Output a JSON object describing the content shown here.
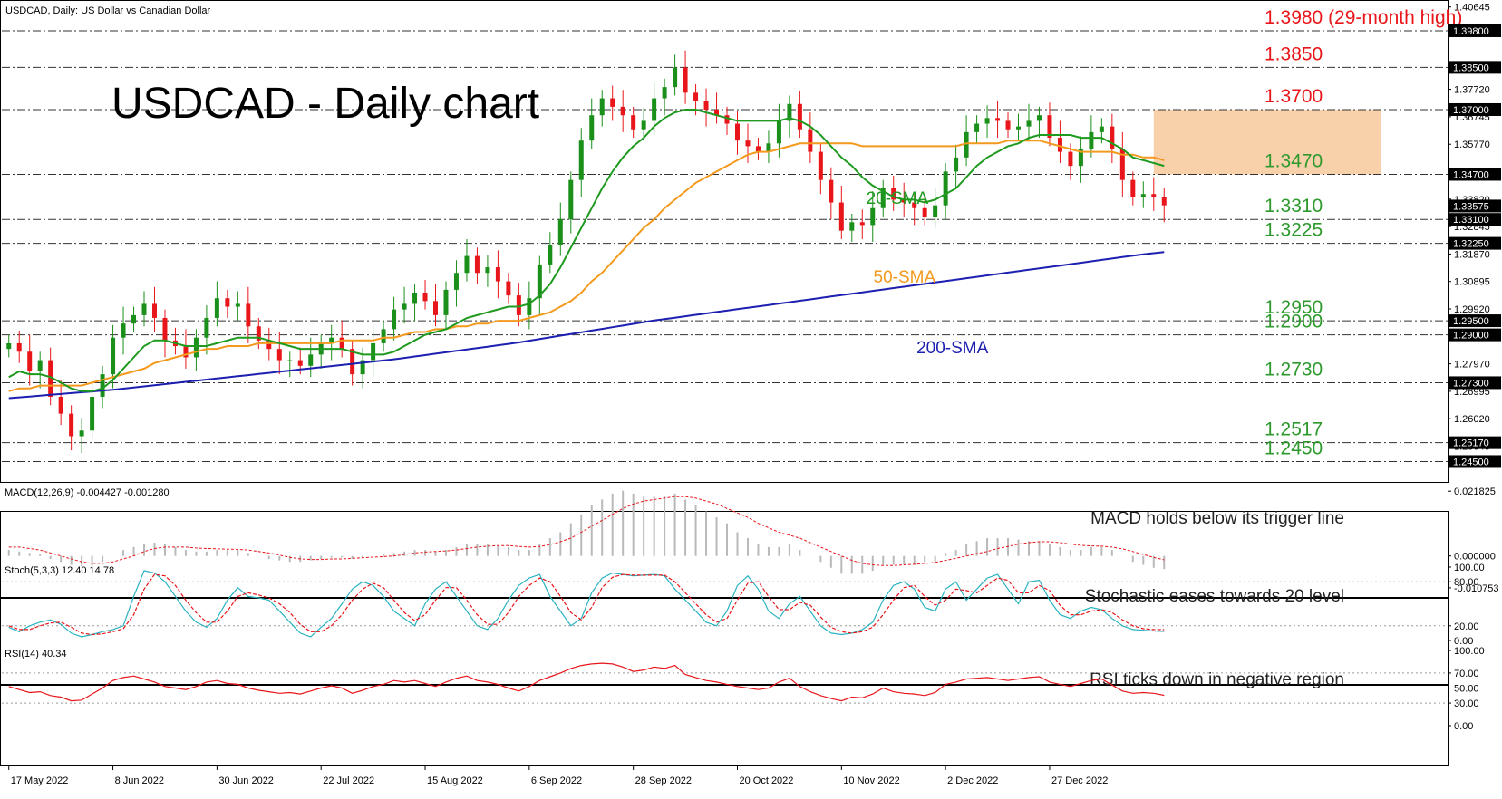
{
  "header": {
    "symbol_line": "USDCAD, Daily:  US Dollar vs Canadian Dollar",
    "big_title": "USDCAD - Daily chart"
  },
  "colors": {
    "bull": "#1a8f1a",
    "bear": "#e8161b",
    "sma20": "#1f9a1f",
    "sma50": "#f39a1e",
    "sma200": "#1c1fb0",
    "range_box": "#f6c08e",
    "level_red": "#e8161b",
    "level_green": "#2e9a2e",
    "macd_hist": "#b9b9b9",
    "macd_signal": "#e8161b",
    "stoch_main": "#2ab3c0",
    "stoch_signal": "#e8161b",
    "rsi": "#e8161b"
  },
  "chart_data": [
    {
      "panel": "price",
      "type": "candlestick",
      "ylim": [
        1.24,
        1.407
      ],
      "y_ticks": [
        "1.40645",
        "1.37720",
        "1.36745",
        "1.35770",
        "1.34795",
        "1.33820",
        "1.32845",
        "1.31870",
        "1.30895",
        "1.29920",
        "1.28945",
        "1.27970",
        "1.26995",
        "1.26020",
        "1.25045"
      ],
      "current_price": "1.33575",
      "x_labels": [
        "17 May 2022",
        "8 Jun 2022",
        "30 Jun 2022",
        "22 Jul 2022",
        "15 Aug 2022",
        "6 Sep 2022",
        "28 Sep 2022",
        "20 Oct 2022",
        "10 Nov 2022",
        "2 Dec 2022",
        "27 Dec 2022"
      ],
      "series_path": [
        1.287,
        1.284,
        1.277,
        1.281,
        1.268,
        1.262,
        1.254,
        1.256,
        1.268,
        1.276,
        1.289,
        1.294,
        1.297,
        1.301,
        1.296,
        1.288,
        1.286,
        1.282,
        1.289,
        1.296,
        1.303,
        1.3,
        1.301,
        1.293,
        1.288,
        1.285,
        1.281,
        1.281,
        1.279,
        1.283,
        1.287,
        1.289,
        1.285,
        1.276,
        1.281,
        1.287,
        1.292,
        1.299,
        1.301,
        1.305,
        1.302,
        1.297,
        1.306,
        1.312,
        1.318,
        1.312,
        1.314,
        1.309,
        1.304,
        1.297,
        1.303,
        1.315,
        1.322,
        1.331,
        1.345,
        1.359,
        1.368,
        1.374,
        1.371,
        1.368,
        1.363,
        1.366,
        1.374,
        1.378,
        1.385,
        1.376,
        1.373,
        1.37,
        1.368,
        1.365,
        1.359,
        1.357,
        1.355,
        1.358,
        1.366,
        1.372,
        1.363,
        1.355,
        1.345,
        1.337,
        1.327,
        1.33,
        1.329,
        1.335,
        1.342,
        1.338,
        1.337,
        1.335,
        1.332,
        1.336,
        1.348,
        1.353,
        1.362,
        1.365,
        1.367,
        1.366,
        1.363,
        1.364,
        1.366,
        1.368,
        1.36,
        1.355,
        1.35,
        1.356,
        1.362,
        1.364,
        1.356,
        1.345,
        1.339,
        1.34,
        1.339,
        1.336
      ],
      "sma20": [
        1.275,
        1.277,
        1.276,
        1.276,
        1.275,
        1.273,
        1.271,
        1.27,
        1.27,
        1.271,
        1.274,
        1.278,
        1.282,
        1.286,
        1.288,
        1.288,
        1.287,
        1.286,
        1.286,
        1.286,
        1.287,
        1.288,
        1.289,
        1.289,
        1.289,
        1.288,
        1.287,
        1.286,
        1.285,
        1.285,
        1.285,
        1.285,
        1.285,
        1.284,
        1.283,
        1.283,
        1.283,
        1.284,
        1.286,
        1.288,
        1.29,
        1.291,
        1.292,
        1.294,
        1.296,
        1.297,
        1.298,
        1.299,
        1.3,
        1.3,
        1.301,
        1.304,
        1.308,
        1.314,
        1.321,
        1.328,
        1.335,
        1.342,
        1.348,
        1.353,
        1.357,
        1.36,
        1.364,
        1.367,
        1.369,
        1.37,
        1.37,
        1.369,
        1.368,
        1.367,
        1.366,
        1.366,
        1.366,
        1.366,
        1.366,
        1.367,
        1.366,
        1.364,
        1.361,
        1.357,
        1.353,
        1.35,
        1.346,
        1.343,
        1.341,
        1.339,
        1.338,
        1.338,
        1.337,
        1.338,
        1.34,
        1.342,
        1.346,
        1.35,
        1.353,
        1.355,
        1.357,
        1.358,
        1.36,
        1.361,
        1.361,
        1.361,
        1.361,
        1.36,
        1.36,
        1.36,
        1.358,
        1.356,
        1.353,
        1.352,
        1.351,
        1.35
      ],
      "sma50": [
        1.27,
        1.271,
        1.271,
        1.272,
        1.272,
        1.272,
        1.272,
        1.272,
        1.273,
        1.274,
        1.275,
        1.276,
        1.277,
        1.278,
        1.28,
        1.281,
        1.282,
        1.283,
        1.284,
        1.285,
        1.285,
        1.286,
        1.286,
        1.286,
        1.287,
        1.287,
        1.287,
        1.287,
        1.287,
        1.287,
        1.287,
        1.287,
        1.288,
        1.288,
        1.288,
        1.288,
        1.289,
        1.289,
        1.29,
        1.291,
        1.291,
        1.292,
        1.292,
        1.293,
        1.293,
        1.294,
        1.294,
        1.295,
        1.295,
        1.295,
        1.296,
        1.297,
        1.298,
        1.3,
        1.302,
        1.305,
        1.309,
        1.312,
        1.316,
        1.32,
        1.324,
        1.328,
        1.331,
        1.335,
        1.338,
        1.341,
        1.344,
        1.346,
        1.348,
        1.35,
        1.352,
        1.354,
        1.355,
        1.355,
        1.356,
        1.357,
        1.358,
        1.358,
        1.358,
        1.358,
        1.358,
        1.358,
        1.357,
        1.357,
        1.357,
        1.357,
        1.357,
        1.357,
        1.357,
        1.357,
        1.357,
        1.357,
        1.358,
        1.358,
        1.358,
        1.358,
        1.359,
        1.359,
        1.359,
        1.359,
        1.358,
        1.357,
        1.356,
        1.355,
        1.355,
        1.355,
        1.355,
        1.354,
        1.354,
        1.353,
        1.353,
        1.352
      ],
      "sma200": [
        1.2675,
        1.2678,
        1.2681,
        1.2684,
        1.2687,
        1.269,
        1.2693,
        1.2696,
        1.2699,
        1.2702,
        1.2705,
        1.2709,
        1.2713,
        1.2717,
        1.2721,
        1.2725,
        1.2729,
        1.2733,
        1.2737,
        1.2741,
        1.2745,
        1.2749,
        1.2753,
        1.2757,
        1.2761,
        1.2765,
        1.2769,
        1.2773,
        1.2777,
        1.2781,
        1.2785,
        1.2789,
        1.2793,
        1.2797,
        1.2801,
        1.2805,
        1.2809,
        1.2813,
        1.2818,
        1.2823,
        1.2828,
        1.2833,
        1.2838,
        1.2843,
        1.2848,
        1.2853,
        1.2858,
        1.2863,
        1.2868,
        1.2873,
        1.2879,
        1.2885,
        1.2891,
        1.2897,
        1.2903,
        1.2909,
        1.2915,
        1.2921,
        1.2927,
        1.2933,
        1.2939,
        1.2945,
        1.2951,
        1.2956,
        1.2961,
        1.2966,
        1.2971,
        1.2976,
        1.2981,
        1.2986,
        1.2991,
        1.2996,
        1.3001,
        1.3006,
        1.3011,
        1.3016,
        1.3021,
        1.3026,
        1.3031,
        1.3036,
        1.3041,
        1.3046,
        1.3051,
        1.3056,
        1.3061,
        1.3066,
        1.3071,
        1.3076,
        1.3081,
        1.3086,
        1.3091,
        1.3096,
        1.3101,
        1.3106,
        1.3111,
        1.3116,
        1.3121,
        1.3126,
        1.3131,
        1.3136,
        1.3141,
        1.3146,
        1.3151,
        1.3156,
        1.3161,
        1.3166,
        1.3171,
        1.3176,
        1.3181,
        1.3186,
        1.319,
        1.3194
      ],
      "range_box": {
        "x_from": 0.8,
        "x_to": 0.958,
        "y_from": 1.347,
        "y_to": 1.37
      },
      "levels": [
        {
          "value": 1.398,
          "label": "1.3980 (29-month high)",
          "axis_label": "1.39800",
          "color": "red"
        },
        {
          "value": 1.385,
          "label": "1.3850",
          "axis_label": "1.38500",
          "color": "red"
        },
        {
          "value": 1.37,
          "label": "1.3700",
          "axis_label": "1.37000",
          "color": "red"
        },
        {
          "value": 1.347,
          "label": "1.3470",
          "axis_label": "1.34700",
          "color": "green"
        },
        {
          "value": 1.331,
          "label": "1.3310",
          "axis_label": "1.33100",
          "color": "green"
        },
        {
          "value": 1.3225,
          "label": "1.3225",
          "axis_label": "1.32250",
          "color": "green"
        },
        {
          "value": 1.295,
          "label": "1.2950",
          "axis_label": "1.29500",
          "color": "green"
        },
        {
          "value": 1.29,
          "label": "1.2900",
          "axis_label": "1.29000",
          "color": "green"
        },
        {
          "value": 1.273,
          "label": "1.2730",
          "axis_label": "1.27300",
          "color": "green"
        },
        {
          "value": 1.2517,
          "label": "1.2517",
          "axis_label": "1.25170",
          "color": "green"
        },
        {
          "value": 1.245,
          "label": "1.2450",
          "axis_label": "1.24500",
          "color": "green"
        }
      ],
      "annotations": [
        {
          "text": "20-SMA",
          "color": "sma20",
          "at_x": 0.6,
          "at_y": 1.3365
        },
        {
          "text": "50-SMA",
          "color": "sma50",
          "at_x": 0.605,
          "at_y": 1.3085
        },
        {
          "text": "200-SMA",
          "color": "sma200",
          "at_x": 0.635,
          "at_y": 1.2835
        }
      ]
    },
    {
      "panel": "macd",
      "type": "bar+line",
      "title": "MACD(12,26,9) -0.004427 -0.001280",
      "ylim": [
        -0.012,
        0.0225
      ],
      "y_ticks": [
        "0.021825",
        "0.000000",
        "-0.010753"
      ],
      "note": "MACD holds below its trigger line",
      "histogram": [
        0.002,
        0.0015,
        0.001,
        0.0005,
        -0.001,
        -0.002,
        -0.003,
        -0.0035,
        -0.003,
        -0.002,
        0.0,
        0.002,
        0.003,
        0.004,
        0.0045,
        0.004,
        0.003,
        0.002,
        0.0015,
        0.0015,
        0.002,
        0.002,
        0.002,
        0.001,
        0.0,
        -0.001,
        -0.0015,
        -0.002,
        -0.002,
        -0.0015,
        -0.001,
        -0.0005,
        -0.0005,
        -0.001,
        -0.0005,
        0.0,
        0.0005,
        0.001,
        0.0015,
        0.002,
        0.002,
        0.0015,
        0.002,
        0.003,
        0.004,
        0.004,
        0.004,
        0.0035,
        0.003,
        0.002,
        0.002,
        0.004,
        0.006,
        0.008,
        0.011,
        0.014,
        0.017,
        0.019,
        0.021,
        0.022,
        0.021,
        0.02,
        0.02,
        0.02,
        0.021,
        0.019,
        0.017,
        0.015,
        0.013,
        0.011,
        0.008,
        0.006,
        0.004,
        0.003,
        0.003,
        0.004,
        0.002,
        0.0,
        -0.002,
        -0.004,
        -0.006,
        -0.006,
        -0.006,
        -0.005,
        -0.003,
        -0.003,
        -0.003,
        -0.003,
        -0.002,
        -0.002,
        0.001,
        0.002,
        0.004,
        0.005,
        0.006,
        0.006,
        0.006,
        0.0055,
        0.005,
        0.005,
        0.004,
        0.003,
        0.002,
        0.002,
        0.003,
        0.003,
        0.002,
        0.0,
        -0.002,
        -0.003,
        -0.004,
        -0.0044
      ],
      "signal": [
        0.003,
        0.003,
        0.0025,
        0.002,
        0.001,
        0.0,
        -0.001,
        -0.002,
        -0.0025,
        -0.0025,
        -0.002,
        -0.001,
        0.0,
        0.0015,
        0.0025,
        0.003,
        0.003,
        0.003,
        0.0027,
        0.0025,
        0.0024,
        0.0023,
        0.0022,
        0.002,
        0.0015,
        0.001,
        0.0003,
        -0.0005,
        -0.001,
        -0.0012,
        -0.0012,
        -0.001,
        -0.001,
        -0.0008,
        -0.0006,
        -0.0004,
        -0.0002,
        0.0,
        0.0005,
        0.001,
        0.0013,
        0.0015,
        0.0017,
        0.002,
        0.0025,
        0.003,
        0.0033,
        0.0035,
        0.0035,
        0.0032,
        0.003,
        0.0032,
        0.0038,
        0.0048,
        0.006,
        0.008,
        0.01,
        0.012,
        0.014,
        0.016,
        0.0175,
        0.0185,
        0.019,
        0.0195,
        0.02,
        0.02,
        0.0195,
        0.0185,
        0.0175,
        0.016,
        0.0145,
        0.013,
        0.011,
        0.0095,
        0.008,
        0.007,
        0.006,
        0.0045,
        0.003,
        0.0015,
        0.0,
        -0.0015,
        -0.0025,
        -0.003,
        -0.0032,
        -0.0032,
        -0.003,
        -0.0028,
        -0.0025,
        -0.0022,
        -0.0015,
        -0.0008,
        0.0,
        0.0008,
        0.0015,
        0.0025,
        0.0032,
        0.004,
        0.0045,
        0.0048,
        0.0048,
        0.0045,
        0.004,
        0.0036,
        0.0034,
        0.0033,
        0.003,
        0.0024,
        0.0015,
        0.0005,
        -0.0005,
        -0.0013
      ]
    },
    {
      "panel": "stochastic",
      "type": "line",
      "title": "Stoch(5,3,3) 12.40 14.78",
      "ylim": [
        0,
        100
      ],
      "y_ticks": [
        "100.00",
        "80.00",
        "20.00",
        "0.00"
      ],
      "note": "Stochastic eases towards 20 level",
      "main": [
        18,
        12,
        20,
        25,
        28,
        22,
        10,
        5,
        8,
        12,
        15,
        20,
        60,
        95,
        92,
        80,
        60,
        40,
        25,
        18,
        30,
        55,
        72,
        60,
        58,
        55,
        40,
        25,
        10,
        5,
        18,
        30,
        50,
        70,
        80,
        75,
        60,
        40,
        30,
        20,
        50,
        70,
        80,
        60,
        40,
        20,
        15,
        30,
        55,
        75,
        85,
        90,
        60,
        40,
        20,
        30,
        65,
        85,
        92,
        90,
        88,
        89,
        90,
        88,
        70,
        55,
        40,
        25,
        20,
        40,
        75,
        88,
        70,
        40,
        30,
        50,
        60,
        40,
        20,
        10,
        8,
        10,
        15,
        25,
        55,
        75,
        80,
        70,
        45,
        40,
        70,
        80,
        55,
        70,
        85,
        90,
        70,
        50,
        80,
        82,
        55,
        35,
        30,
        40,
        45,
        42,
        30,
        20,
        15,
        14,
        13,
        12.4
      ],
      "signal": [
        20,
        15,
        15,
        20,
        24,
        25,
        18,
        10,
        8,
        9,
        12,
        16,
        35,
        70,
        90,
        88,
        75,
        55,
        38,
        25,
        25,
        40,
        60,
        65,
        62,
        58,
        50,
        38,
        22,
        12,
        12,
        20,
        35,
        55,
        70,
        78,
        72,
        55,
        38,
        27,
        35,
        55,
        72,
        72,
        55,
        35,
        22,
        22,
        38,
        60,
        75,
        85,
        80,
        60,
        38,
        28,
        45,
        72,
        86,
        90,
        89,
        89,
        89,
        89,
        80,
        65,
        50,
        35,
        25,
        30,
        55,
        78,
        80,
        60,
        42,
        42,
        52,
        48,
        32,
        18,
        12,
        10,
        12,
        18,
        35,
        55,
        72,
        75,
        60,
        48,
        55,
        70,
        68,
        65,
        75,
        85,
        82,
        65,
        65,
        75,
        68,
        48,
        35,
        35,
        40,
        42,
        38,
        28,
        20,
        16,
        15,
        14.8
      ]
    },
    {
      "panel": "rsi",
      "type": "line",
      "title": "RSI(14) 40.34",
      "ylim": [
        0,
        100
      ],
      "y_ticks": [
        "100.00",
        "70.00",
        "50.00",
        "30.00",
        "0.00"
      ],
      "note": "RSI ticks down in negative region",
      "values": [
        52,
        48,
        44,
        45,
        40,
        38,
        33,
        34,
        42,
        50,
        60,
        64,
        66,
        62,
        58,
        52,
        50,
        48,
        52,
        58,
        60,
        56,
        55,
        50,
        47,
        45,
        43,
        44,
        42,
        46,
        50,
        53,
        50,
        43,
        47,
        52,
        55,
        60,
        58,
        60,
        56,
        52,
        58,
        63,
        66,
        60,
        58,
        55,
        50,
        46,
        52,
        60,
        65,
        70,
        76,
        80,
        82,
        83,
        82,
        78,
        72,
        74,
        78,
        76,
        80,
        68,
        64,
        60,
        58,
        55,
        52,
        50,
        48,
        50,
        58,
        63,
        52,
        45,
        40,
        36,
        33,
        38,
        37,
        42,
        50,
        45,
        43,
        42,
        40,
        44,
        55,
        58,
        62,
        63,
        64,
        62,
        60,
        62,
        64,
        65,
        58,
        55,
        52,
        56,
        60,
        62,
        54,
        46,
        43,
        44,
        43,
        40.34
      ]
    }
  ]
}
